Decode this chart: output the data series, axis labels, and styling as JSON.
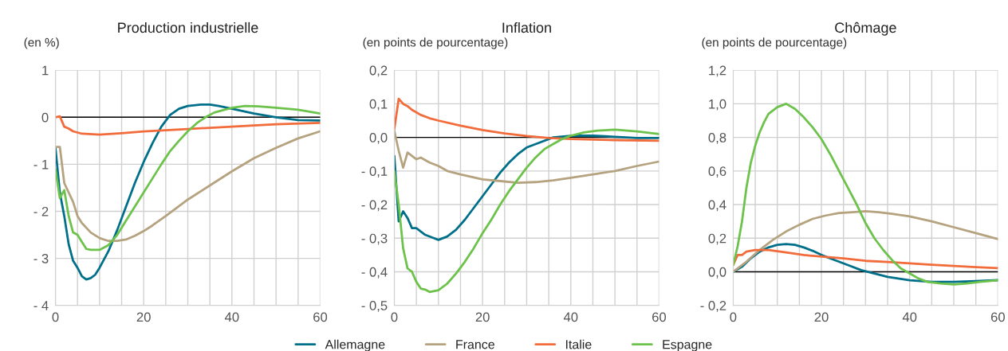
{
  "chart_data": [
    {
      "type": "line",
      "title": "Production industrielle",
      "ylabel": "(en %)",
      "grid": true,
      "legend": "bottom",
      "xlim": [
        0,
        60
      ],
      "xticks": [
        0,
        {
          "value": 5,
          "label": null
        },
        {
          "value": 10,
          "label": null
        },
        {
          "value": 15,
          "label": null
        },
        20,
        {
          "value": 25,
          "label": null
        },
        {
          "value": 30,
          "label": null
        },
        {
          "value": 35,
          "label": null
        },
        40,
        {
          "value": 45,
          "label": null
        },
        {
          "value": 50,
          "label": null
        },
        {
          "value": 55,
          "label": null
        },
        60
      ],
      "ylim": [
        -4,
        1
      ],
      "yticks": [
        {
          "value": -4,
          "label": "- 4"
        },
        {
          "value": -3,
          "label": "- 3"
        },
        {
          "value": -2,
          "label": "- 2"
        },
        {
          "value": -1,
          "label": "- 1"
        },
        0,
        1
      ],
      "ref_lines": [
        {
          "axis": "y",
          "value": 0,
          "label": null,
          "color": "#000000"
        }
      ],
      "series": [
        {
          "name": "Allemagne",
          "color": "#006f8a",
          "x": [
            0,
            1,
            2,
            3,
            4,
            5,
            6,
            7,
            8,
            9,
            10,
            12,
            14,
            16,
            18,
            20,
            22,
            24,
            26,
            28,
            30,
            33,
            35,
            37,
            40,
            45,
            50,
            55,
            60
          ],
          "values": [
            -0.65,
            -1.6,
            -2.1,
            -2.7,
            -3.05,
            -3.2,
            -3.38,
            -3.45,
            -3.42,
            -3.35,
            -3.2,
            -2.85,
            -2.4,
            -1.9,
            -1.4,
            -0.95,
            -0.55,
            -0.2,
            0.05,
            0.18,
            0.24,
            0.27,
            0.27,
            0.24,
            0.18,
            0.08,
            0.0,
            -0.06,
            -0.07
          ]
        },
        {
          "name": "France",
          "color": "#b5a27f",
          "x": [
            0,
            1,
            2,
            3,
            4,
            5,
            6,
            8,
            10,
            12,
            14,
            16,
            18,
            20,
            22,
            25,
            30,
            35,
            40,
            45,
            50,
            55,
            60
          ],
          "values": [
            -0.63,
            -0.63,
            -1.4,
            -1.6,
            -1.8,
            -2.1,
            -2.25,
            -2.45,
            -2.57,
            -2.63,
            -2.63,
            -2.6,
            -2.52,
            -2.42,
            -2.3,
            -2.1,
            -1.75,
            -1.45,
            -1.15,
            -0.87,
            -0.65,
            -0.45,
            -0.3
          ]
        },
        {
          "name": "Italie",
          "color": "#f26b3a",
          "x": [
            0,
            1,
            2,
            3,
            4,
            6,
            10,
            15,
            20,
            30,
            40,
            50,
            60
          ],
          "values": [
            0.0,
            0.02,
            -0.2,
            -0.24,
            -0.3,
            -0.35,
            -0.37,
            -0.34,
            -0.3,
            -0.25,
            -0.2,
            -0.15,
            -0.12
          ]
        },
        {
          "name": "Espagne",
          "color": "#6cc24a",
          "x": [
            0,
            1,
            2,
            3,
            4,
            5,
            6,
            7,
            8,
            10,
            12,
            14,
            16,
            18,
            20,
            22,
            24,
            26,
            28,
            30,
            32,
            34,
            36,
            38,
            40,
            43,
            46,
            50,
            55,
            60
          ],
          "values": [
            -1.1,
            -1.72,
            -1.55,
            -2.1,
            -2.45,
            -2.5,
            -2.65,
            -2.8,
            -2.82,
            -2.82,
            -2.72,
            -2.5,
            -2.2,
            -1.9,
            -1.6,
            -1.3,
            -1.0,
            -0.72,
            -0.5,
            -0.3,
            -0.13,
            0.0,
            0.1,
            0.15,
            0.2,
            0.24,
            0.23,
            0.2,
            0.16,
            0.08
          ]
        }
      ]
    },
    {
      "type": "line",
      "title": "Inflation",
      "ylabel": "(en points de pourcentage)",
      "grid": true,
      "xlim": [
        0,
        60
      ],
      "xticks": [
        0,
        {
          "value": 5,
          "label": null
        },
        {
          "value": 10,
          "label": null
        },
        {
          "value": 15,
          "label": null
        },
        20,
        {
          "value": 25,
          "label": null
        },
        {
          "value": 30,
          "label": null
        },
        {
          "value": 35,
          "label": null
        },
        40,
        {
          "value": 45,
          "label": null
        },
        {
          "value": 50,
          "label": null
        },
        {
          "value": 55,
          "label": null
        },
        60
      ],
      "ylim": [
        -0.5,
        0.2
      ],
      "yticks": [
        {
          "value": -0.5,
          "label": "- 0,5"
        },
        {
          "value": -0.4,
          "label": "- 0,4"
        },
        {
          "value": -0.3,
          "label": "- 0,3"
        },
        {
          "value": -0.2,
          "label": "- 0,2"
        },
        {
          "value": -0.1,
          "label": "- 0,1"
        },
        {
          "value": 0,
          "label": "0,0"
        },
        {
          "value": 0.1,
          "label": "0,1"
        },
        {
          "value": 0.2,
          "label": "0,2"
        }
      ],
      "ref_lines": [
        {
          "axis": "y",
          "value": 0,
          "label": null,
          "color": "#000000"
        }
      ],
      "series": [
        {
          "color": "#006f8a",
          "x": [
            0,
            1,
            2,
            3,
            4,
            5,
            7,
            9,
            10,
            12,
            14,
            16,
            18,
            20,
            22,
            24,
            26,
            28,
            30,
            33,
            36,
            40,
            45,
            50,
            55,
            60
          ],
          "values": [
            -0.055,
            -0.25,
            -0.22,
            -0.24,
            -0.27,
            -0.27,
            -0.29,
            -0.3,
            -0.305,
            -0.295,
            -0.275,
            -0.245,
            -0.21,
            -0.175,
            -0.14,
            -0.105,
            -0.075,
            -0.05,
            -0.03,
            -0.015,
            0.0,
            0.005,
            0.005,
            0.002,
            -0.002,
            -0.002
          ]
        },
        {
          "color": "#b5a27f",
          "x": [
            0,
            1,
            2,
            3,
            4,
            5,
            6,
            8,
            10,
            12,
            15,
            20,
            24,
            28,
            32,
            36,
            40,
            45,
            50,
            55,
            60
          ],
          "values": [
            0.02,
            -0.04,
            -0.09,
            -0.045,
            -0.055,
            -0.065,
            -0.06,
            -0.075,
            -0.085,
            -0.1,
            -0.11,
            -0.125,
            -0.13,
            -0.135,
            -0.133,
            -0.128,
            -0.12,
            -0.11,
            -0.1,
            -0.085,
            -0.072
          ]
        },
        {
          "color": "#f26b3a",
          "x": [
            0,
            1,
            2,
            3,
            4,
            6,
            8,
            10,
            15,
            20,
            25,
            30,
            35,
            40,
            50,
            60
          ],
          "values": [
            0.025,
            0.115,
            0.1,
            0.093,
            0.082,
            0.067,
            0.057,
            0.05,
            0.035,
            0.022,
            0.012,
            0.004,
            -0.002,
            -0.005,
            -0.008,
            -0.01
          ]
        },
        {
          "color": "#6cc24a",
          "x": [
            0,
            1,
            2,
            3,
            4,
            5,
            6,
            7,
            8,
            10,
            12,
            14,
            16,
            18,
            20,
            22,
            24,
            26,
            28,
            30,
            32,
            34,
            36,
            38,
            40,
            43,
            46,
            50,
            55,
            60
          ],
          "values": [
            -0.1,
            -0.2,
            -0.33,
            -0.39,
            -0.4,
            -0.43,
            -0.45,
            -0.453,
            -0.46,
            -0.455,
            -0.435,
            -0.405,
            -0.37,
            -0.33,
            -0.285,
            -0.245,
            -0.2,
            -0.16,
            -0.125,
            -0.09,
            -0.06,
            -0.035,
            -0.02,
            -0.005,
            0.005,
            0.015,
            0.02,
            0.023,
            0.018,
            0.01
          ]
        }
      ]
    },
    {
      "type": "line",
      "title": "Chômage",
      "ylabel": "(en points de pourcentage)",
      "grid": true,
      "xlim": [
        0,
        60
      ],
      "xticks": [
        0,
        {
          "value": 5,
          "label": null
        },
        {
          "value": 10,
          "label": null
        },
        {
          "value": 15,
          "label": null
        },
        20,
        {
          "value": 25,
          "label": null
        },
        {
          "value": 30,
          "label": null
        },
        {
          "value": 35,
          "label": null
        },
        40,
        {
          "value": 45,
          "label": null
        },
        {
          "value": 50,
          "label": null
        },
        {
          "value": 55,
          "label": null
        },
        60
      ],
      "ylim": [
        -0.2,
        1.2
      ],
      "yticks": [
        {
          "value": -0.2,
          "label": "- 0,2"
        },
        {
          "value": 0,
          "label": "0,0"
        },
        {
          "value": 0.2,
          "label": "0,2"
        },
        {
          "value": 0.4,
          "label": "0,4"
        },
        {
          "value": 0.6,
          "label": "0,6"
        },
        {
          "value": 0.8,
          "label": "0,8"
        },
        {
          "value": 1.0,
          "label": "1,0"
        },
        {
          "value": 1.2,
          "label": "1,2"
        }
      ],
      "ref_lines": [
        {
          "axis": "y",
          "value": 0,
          "label": null,
          "color": "#000000"
        }
      ],
      "series": [
        {
          "color": "#006f8a",
          "x": [
            0,
            2,
            4,
            6,
            8,
            10,
            12,
            14,
            16,
            18,
            20,
            23,
            26,
            29,
            32,
            35,
            40,
            45,
            50,
            55,
            60
          ],
          "values": [
            0.0,
            0.03,
            0.08,
            0.12,
            0.145,
            0.16,
            0.165,
            0.16,
            0.145,
            0.125,
            0.1,
            0.07,
            0.04,
            0.01,
            -0.01,
            -0.03,
            -0.05,
            -0.06,
            -0.06,
            -0.055,
            -0.05
          ]
        },
        {
          "color": "#b5a27f",
          "x": [
            0,
            3,
            6,
            9,
            12,
            15,
            18,
            21,
            24,
            27,
            30,
            33,
            36,
            40,
            45,
            50,
            55,
            60
          ],
          "values": [
            0.0,
            0.06,
            0.13,
            0.19,
            0.24,
            0.28,
            0.315,
            0.335,
            0.35,
            0.355,
            0.36,
            0.355,
            0.345,
            0.33,
            0.3,
            0.265,
            0.23,
            0.195
          ]
        },
        {
          "color": "#f26b3a",
          "x": [
            0,
            1,
            2,
            3,
            5,
            8,
            12,
            16,
            20,
            25,
            30,
            35,
            40,
            45,
            50,
            55,
            60
          ],
          "values": [
            0.04,
            0.1,
            0.1,
            0.12,
            0.13,
            0.13,
            0.115,
            0.1,
            0.09,
            0.08,
            0.065,
            0.058,
            0.05,
            0.042,
            0.035,
            0.028,
            0.022
          ]
        },
        {
          "color": "#6cc24a",
          "x": [
            0,
            1,
            2,
            3,
            4,
            5,
            6,
            7,
            8,
            10,
            12,
            14,
            16,
            18,
            20,
            22,
            24,
            26,
            28,
            30,
            32,
            34,
            36,
            38,
            40,
            42,
            44,
            47,
            50,
            53,
            56,
            60
          ],
          "values": [
            0.04,
            0.15,
            0.3,
            0.5,
            0.65,
            0.75,
            0.83,
            0.89,
            0.94,
            0.98,
            1.0,
            0.97,
            0.92,
            0.86,
            0.79,
            0.7,
            0.6,
            0.5,
            0.4,
            0.29,
            0.2,
            0.13,
            0.07,
            0.02,
            -0.01,
            -0.04,
            -0.06,
            -0.07,
            -0.075,
            -0.07,
            -0.06,
            -0.05
          ]
        }
      ]
    }
  ]
}
